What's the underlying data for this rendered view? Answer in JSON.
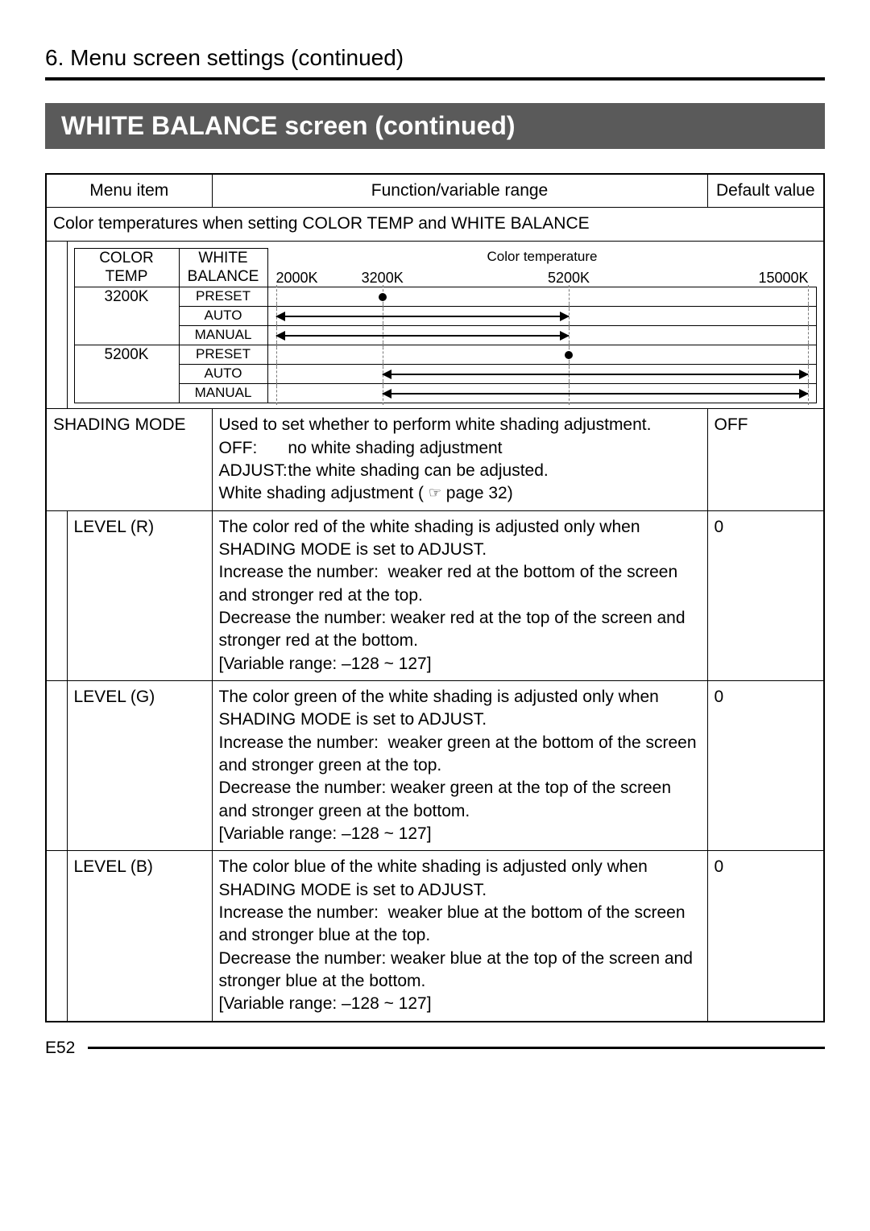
{
  "section_heading": "6. Menu screen settings (continued)",
  "banner": "WHITE BALANCE screen  (continued)",
  "header": {
    "menu_item": "Menu item",
    "function": "Function/variable range",
    "default": "Default value"
  },
  "span_note": "Color temperatures when setting COLOR TEMP and WHITE BALANCE",
  "chart": {
    "title": "Color temperature",
    "axis_ticks": [
      {
        "label": "2000K",
        "pct": 0
      },
      {
        "label": "3200K",
        "pct": 20
      },
      {
        "label": "5200K",
        "pct": 55
      },
      {
        "label": "15000K",
        "pct": 100
      }
    ],
    "color_temp_header": "COLOR\nTEMP",
    "white_balance_header": "WHITE\nBALANCE",
    "groups": [
      {
        "color_temp": "3200K",
        "modes": [
          {
            "label": "PRESET",
            "type": "dot",
            "at": 20
          },
          {
            "label": "AUTO",
            "type": "range",
            "from": 0,
            "to": 55,
            "left": true,
            "right": true
          },
          {
            "label": "MANUAL",
            "type": "range",
            "from": 0,
            "to": 55,
            "left": true,
            "right": true
          }
        ]
      },
      {
        "color_temp": "5200K",
        "modes": [
          {
            "label": "PRESET",
            "type": "dot",
            "at": 55
          },
          {
            "label": "AUTO",
            "type": "range",
            "from": 20,
            "to": 100,
            "left": true,
            "right": true
          },
          {
            "label": "MANUAL",
            "type": "range",
            "from": 20,
            "to": 100,
            "left": true,
            "right": true
          }
        ]
      }
    ]
  },
  "rows": [
    {
      "menu": "SHADING MODE",
      "indent": false,
      "func_html": "Used to set whether to perform white shading adjustment.<br><span class=\"def-label\">OFF:</span> no white shading adjustment<br><span class=\"def-label\">ADJUST:</span> the white shading can be adjusted.<br>White shading adjustment ( <span class=\"ref-icon\">☞</span> page 32)",
      "default": "OFF"
    },
    {
      "menu": "LEVEL (R)",
      "indent": true,
      "func_html": "The color red of the white shading is adjusted only when SHADING MODE is set to ADJUST.<br>Increase the number:&nbsp;&nbsp;weaker red at the bottom of the screen and stronger red at the top.<br>Decrease the number:&nbsp;weaker red at the top of the screen and stronger red at the bottom.<br>[Variable range: –128 ~ 127]",
      "default": "0"
    },
    {
      "menu": "LEVEL (G)",
      "indent": true,
      "func_html": "The color green of the white shading is adjusted only when SHADING MODE is set to ADJUST.<br>Increase the number:&nbsp;&nbsp;weaker green at the bottom of the screen and stronger green at the top.<br>Decrease the number:&nbsp;weaker green at the top of the screen and stronger green at the bottom.<br>[Variable range: –128 ~ 127]",
      "default": "0"
    },
    {
      "menu": "LEVEL (B)",
      "indent": true,
      "func_html": "The color blue of the white shading is adjusted only when SHADING MODE is set to ADJUST.<br>Increase the number:&nbsp;&nbsp;weaker blue at the bottom of the screen and stronger blue at the top.<br>Decrease the number:&nbsp;weaker blue at the top of the screen and stronger blue at the bottom.<br>[Variable range: –128 ~ 127]",
      "default": "0"
    }
  ],
  "page_number": "E52",
  "colors": {
    "banner_bg": "#5a5a5a",
    "banner_fg": "#ffffff",
    "rule": "#000000",
    "dash": "#777777"
  }
}
